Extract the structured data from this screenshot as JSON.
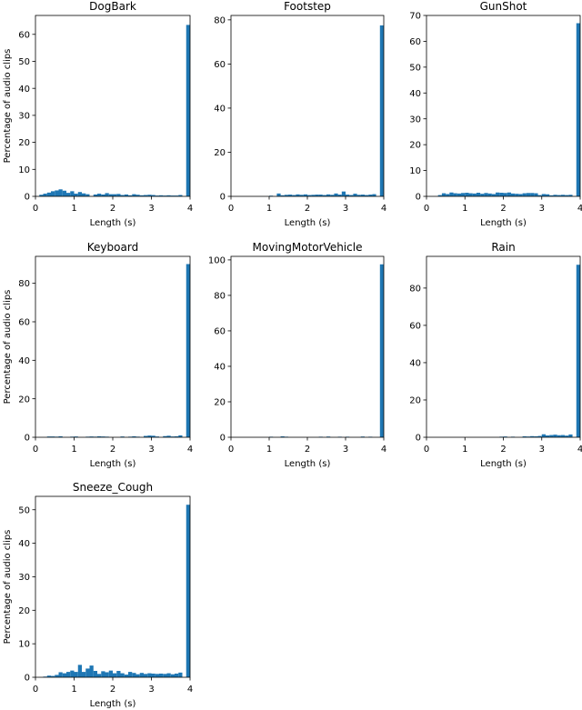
{
  "chart_data": [
    {
      "type": "bar",
      "title": "DogBark",
      "xlabel": "Length (s)",
      "ylabel": "Percentage of audio clips",
      "xlim": [
        0,
        4
      ],
      "ylim": [
        0,
        67
      ],
      "xticks": [
        0,
        1,
        2,
        3,
        4
      ],
      "yticks": [
        0,
        10,
        20,
        30,
        40,
        50,
        60
      ],
      "bin_width": 0.1,
      "color": "#1f77b4",
      "bins": [
        {
          "x": 0.1,
          "y": 0.6
        },
        {
          "x": 0.2,
          "y": 1.0
        },
        {
          "x": 0.3,
          "y": 1.4
        },
        {
          "x": 0.4,
          "y": 1.9
        },
        {
          "x": 0.5,
          "y": 2.2
        },
        {
          "x": 0.6,
          "y": 2.6
        },
        {
          "x": 0.7,
          "y": 2.1
        },
        {
          "x": 0.8,
          "y": 1.3
        },
        {
          "x": 0.9,
          "y": 1.9
        },
        {
          "x": 1.0,
          "y": 1.0
        },
        {
          "x": 1.1,
          "y": 1.6
        },
        {
          "x": 1.2,
          "y": 1.1
        },
        {
          "x": 1.3,
          "y": 0.8
        },
        {
          "x": 1.5,
          "y": 0.7
        },
        {
          "x": 1.6,
          "y": 1.0
        },
        {
          "x": 1.7,
          "y": 0.7
        },
        {
          "x": 1.8,
          "y": 1.2
        },
        {
          "x": 1.9,
          "y": 0.8
        },
        {
          "x": 2.0,
          "y": 0.8
        },
        {
          "x": 2.1,
          "y": 0.9
        },
        {
          "x": 2.2,
          "y": 0.5
        },
        {
          "x": 2.3,
          "y": 0.7
        },
        {
          "x": 2.4,
          "y": 0.4
        },
        {
          "x": 2.5,
          "y": 0.8
        },
        {
          "x": 2.6,
          "y": 0.6
        },
        {
          "x": 2.7,
          "y": 0.4
        },
        {
          "x": 2.8,
          "y": 0.5
        },
        {
          "x": 2.9,
          "y": 0.6
        },
        {
          "x": 3.0,
          "y": 0.5
        },
        {
          "x": 3.1,
          "y": 0.3
        },
        {
          "x": 3.2,
          "y": 0.4
        },
        {
          "x": 3.3,
          "y": 0.3
        },
        {
          "x": 3.4,
          "y": 0.4
        },
        {
          "x": 3.5,
          "y": 0.3
        },
        {
          "x": 3.6,
          "y": 0.3
        },
        {
          "x": 3.7,
          "y": 0.5
        },
        {
          "x": 3.9,
          "y": 63.5
        }
      ]
    },
    {
      "type": "bar",
      "title": "Footstep",
      "xlabel": "Length (s)",
      "ylabel": "",
      "xlim": [
        0,
        4
      ],
      "ylim": [
        0,
        82
      ],
      "xticks": [
        0,
        1,
        2,
        3,
        4
      ],
      "yticks": [
        0,
        20,
        40,
        60,
        80
      ],
      "bin_width": 0.1,
      "color": "#1f77b4",
      "bins": [
        {
          "x": 1.0,
          "y": 0.3
        },
        {
          "x": 1.2,
          "y": 1.3
        },
        {
          "x": 1.3,
          "y": 0.5
        },
        {
          "x": 1.4,
          "y": 0.7
        },
        {
          "x": 1.5,
          "y": 0.8
        },
        {
          "x": 1.6,
          "y": 0.6
        },
        {
          "x": 1.7,
          "y": 0.9
        },
        {
          "x": 1.8,
          "y": 0.7
        },
        {
          "x": 1.9,
          "y": 0.9
        },
        {
          "x": 2.0,
          "y": 0.6
        },
        {
          "x": 2.1,
          "y": 0.7
        },
        {
          "x": 2.2,
          "y": 0.8
        },
        {
          "x": 2.3,
          "y": 0.8
        },
        {
          "x": 2.4,
          "y": 0.6
        },
        {
          "x": 2.5,
          "y": 0.9
        },
        {
          "x": 2.6,
          "y": 0.7
        },
        {
          "x": 2.7,
          "y": 1.3
        },
        {
          "x": 2.8,
          "y": 0.8
        },
        {
          "x": 2.9,
          "y": 2.2
        },
        {
          "x": 3.0,
          "y": 0.8
        },
        {
          "x": 3.1,
          "y": 0.6
        },
        {
          "x": 3.2,
          "y": 1.2
        },
        {
          "x": 3.3,
          "y": 0.7
        },
        {
          "x": 3.4,
          "y": 0.8
        },
        {
          "x": 3.5,
          "y": 0.6
        },
        {
          "x": 3.6,
          "y": 0.8
        },
        {
          "x": 3.7,
          "y": 1.0
        },
        {
          "x": 3.9,
          "y": 77.5
        }
      ]
    },
    {
      "type": "bar",
      "title": "GunShot",
      "xlabel": "Length (s)",
      "ylabel": "",
      "xlim": [
        0,
        4
      ],
      "ylim": [
        0,
        70
      ],
      "xticks": [
        0,
        1,
        2,
        3,
        4
      ],
      "yticks": [
        0,
        10,
        20,
        30,
        40,
        50,
        60,
        70
      ],
      "bin_width": 0.1,
      "color": "#1f77b4",
      "bins": [
        {
          "x": 0.3,
          "y": 0.5
        },
        {
          "x": 0.4,
          "y": 1.2
        },
        {
          "x": 0.5,
          "y": 0.9
        },
        {
          "x": 0.6,
          "y": 1.5
        },
        {
          "x": 0.7,
          "y": 1.2
        },
        {
          "x": 0.8,
          "y": 1.1
        },
        {
          "x": 0.9,
          "y": 1.3
        },
        {
          "x": 1.0,
          "y": 1.4
        },
        {
          "x": 1.1,
          "y": 1.2
        },
        {
          "x": 1.2,
          "y": 1.1
        },
        {
          "x": 1.3,
          "y": 1.4
        },
        {
          "x": 1.4,
          "y": 1.0
        },
        {
          "x": 1.5,
          "y": 1.3
        },
        {
          "x": 1.6,
          "y": 1.1
        },
        {
          "x": 1.7,
          "y": 0.9
        },
        {
          "x": 1.8,
          "y": 1.5
        },
        {
          "x": 1.9,
          "y": 1.4
        },
        {
          "x": 2.0,
          "y": 1.3
        },
        {
          "x": 2.1,
          "y": 1.5
        },
        {
          "x": 2.2,
          "y": 1.1
        },
        {
          "x": 2.3,
          "y": 1.0
        },
        {
          "x": 2.4,
          "y": 0.9
        },
        {
          "x": 2.5,
          "y": 1.2
        },
        {
          "x": 2.6,
          "y": 1.3
        },
        {
          "x": 2.7,
          "y": 1.3
        },
        {
          "x": 2.8,
          "y": 1.2
        },
        {
          "x": 2.9,
          "y": 0.5
        },
        {
          "x": 3.0,
          "y": 0.9
        },
        {
          "x": 3.1,
          "y": 0.8
        },
        {
          "x": 3.2,
          "y": 0.4
        },
        {
          "x": 3.3,
          "y": 0.6
        },
        {
          "x": 3.4,
          "y": 0.5
        },
        {
          "x": 3.5,
          "y": 0.6
        },
        {
          "x": 3.6,
          "y": 0.5
        },
        {
          "x": 3.7,
          "y": 0.6
        },
        {
          "x": 3.9,
          "y": 67
        }
      ]
    },
    {
      "type": "bar",
      "title": "Keyboard",
      "xlabel": "Length (s)",
      "ylabel": "Percentage of audio clips",
      "xlim": [
        0,
        4
      ],
      "ylim": [
        0,
        94
      ],
      "xticks": [
        0,
        1,
        2,
        3,
        4
      ],
      "yticks": [
        0,
        20,
        40,
        60,
        80
      ],
      "bin_width": 0.1,
      "color": "#1f77b4",
      "bins": [
        {
          "x": 0.3,
          "y": 0.4
        },
        {
          "x": 0.4,
          "y": 0.4
        },
        {
          "x": 0.5,
          "y": 0.3
        },
        {
          "x": 0.6,
          "y": 0.5
        },
        {
          "x": 0.9,
          "y": 0.3
        },
        {
          "x": 1.0,
          "y": 0.4
        },
        {
          "x": 1.3,
          "y": 0.3
        },
        {
          "x": 1.4,
          "y": 0.4
        },
        {
          "x": 1.5,
          "y": 0.3
        },
        {
          "x": 1.6,
          "y": 0.5
        },
        {
          "x": 1.7,
          "y": 0.4
        },
        {
          "x": 1.8,
          "y": 0.3
        },
        {
          "x": 2.2,
          "y": 0.4
        },
        {
          "x": 2.4,
          "y": 0.3
        },
        {
          "x": 2.5,
          "y": 0.5
        },
        {
          "x": 2.6,
          "y": 0.3
        },
        {
          "x": 2.8,
          "y": 0.7
        },
        {
          "x": 2.9,
          "y": 0.9
        },
        {
          "x": 3.0,
          "y": 0.8
        },
        {
          "x": 3.1,
          "y": 0.4
        },
        {
          "x": 3.3,
          "y": 0.6
        },
        {
          "x": 3.4,
          "y": 0.8
        },
        {
          "x": 3.5,
          "y": 0.4
        },
        {
          "x": 3.6,
          "y": 0.5
        },
        {
          "x": 3.7,
          "y": 1.0
        },
        {
          "x": 3.9,
          "y": 90
        }
      ]
    },
    {
      "type": "bar",
      "title": "MovingMotorVehicle",
      "xlabel": "Length (s)",
      "ylabel": "",
      "xlim": [
        0,
        4
      ],
      "ylim": [
        0,
        102
      ],
      "xticks": [
        0,
        1,
        2,
        3,
        4
      ],
      "yticks": [
        0,
        20,
        40,
        60,
        80,
        100
      ],
      "bin_width": 0.1,
      "color": "#1f77b4",
      "bins": [
        {
          "x": 1.0,
          "y": 0.3
        },
        {
          "x": 1.3,
          "y": 0.5
        },
        {
          "x": 1.4,
          "y": 0.3
        },
        {
          "x": 2.3,
          "y": 0.3
        },
        {
          "x": 2.5,
          "y": 0.4
        },
        {
          "x": 2.8,
          "y": 0.3
        },
        {
          "x": 3.0,
          "y": 0.3
        },
        {
          "x": 3.4,
          "y": 0.4
        },
        {
          "x": 3.6,
          "y": 0.3
        },
        {
          "x": 3.9,
          "y": 97.5
        }
      ]
    },
    {
      "type": "bar",
      "title": "Rain",
      "xlabel": "Length (s)",
      "ylabel": "",
      "xlim": [
        0,
        4
      ],
      "ylim": [
        0,
        97
      ],
      "xticks": [
        0,
        1,
        2,
        3,
        4
      ],
      "yticks": [
        0,
        20,
        40,
        60,
        80
      ],
      "bin_width": 0.1,
      "color": "#1f77b4",
      "bins": [
        {
          "x": 1.9,
          "y": 0.3
        },
        {
          "x": 2.0,
          "y": 0.4
        },
        {
          "x": 2.2,
          "y": 0.3
        },
        {
          "x": 2.5,
          "y": 0.5
        },
        {
          "x": 2.6,
          "y": 0.4
        },
        {
          "x": 2.7,
          "y": 0.6
        },
        {
          "x": 2.8,
          "y": 0.5
        },
        {
          "x": 2.9,
          "y": 0.7
        },
        {
          "x": 3.0,
          "y": 1.6
        },
        {
          "x": 3.1,
          "y": 1.0
        },
        {
          "x": 3.2,
          "y": 1.2
        },
        {
          "x": 3.3,
          "y": 1.4
        },
        {
          "x": 3.4,
          "y": 1.1
        },
        {
          "x": 3.5,
          "y": 1.2
        },
        {
          "x": 3.6,
          "y": 0.9
        },
        {
          "x": 3.7,
          "y": 1.5
        },
        {
          "x": 3.9,
          "y": 92.5
        }
      ]
    },
    {
      "type": "bar",
      "title": "Sneeze_Cough",
      "xlabel": "Length (s)",
      "ylabel": "Percentage of audio clips",
      "xlim": [
        0,
        4
      ],
      "ylim": [
        0,
        54
      ],
      "xticks": [
        0,
        1,
        2,
        3,
        4
      ],
      "yticks": [
        0,
        10,
        20,
        30,
        40,
        50
      ],
      "bin_width": 0.1,
      "color": "#1f77b4",
      "bins": [
        {
          "x": 0.2,
          "y": 0.2
        },
        {
          "x": 0.3,
          "y": 0.5
        },
        {
          "x": 0.4,
          "y": 0.4
        },
        {
          "x": 0.5,
          "y": 0.7
        },
        {
          "x": 0.6,
          "y": 1.5
        },
        {
          "x": 0.7,
          "y": 1.2
        },
        {
          "x": 0.8,
          "y": 1.6
        },
        {
          "x": 0.9,
          "y": 2.0
        },
        {
          "x": 1.0,
          "y": 1.6
        },
        {
          "x": 1.1,
          "y": 3.7
        },
        {
          "x": 1.2,
          "y": 1.6
        },
        {
          "x": 1.3,
          "y": 2.6
        },
        {
          "x": 1.4,
          "y": 3.5
        },
        {
          "x": 1.5,
          "y": 1.9
        },
        {
          "x": 1.6,
          "y": 1.0
        },
        {
          "x": 1.7,
          "y": 1.8
        },
        {
          "x": 1.8,
          "y": 1.5
        },
        {
          "x": 1.9,
          "y": 2.0
        },
        {
          "x": 2.0,
          "y": 1.2
        },
        {
          "x": 2.1,
          "y": 1.9
        },
        {
          "x": 2.2,
          "y": 1.2
        },
        {
          "x": 2.3,
          "y": 0.8
        },
        {
          "x": 2.4,
          "y": 1.6
        },
        {
          "x": 2.5,
          "y": 1.3
        },
        {
          "x": 2.6,
          "y": 0.9
        },
        {
          "x": 2.7,
          "y": 1.3
        },
        {
          "x": 2.8,
          "y": 1.0
        },
        {
          "x": 2.9,
          "y": 1.2
        },
        {
          "x": 3.0,
          "y": 1.1
        },
        {
          "x": 3.1,
          "y": 1.0
        },
        {
          "x": 3.2,
          "y": 1.1
        },
        {
          "x": 3.3,
          "y": 1.0
        },
        {
          "x": 3.4,
          "y": 1.2
        },
        {
          "x": 3.5,
          "y": 0.9
        },
        {
          "x": 3.6,
          "y": 1.1
        },
        {
          "x": 3.7,
          "y": 1.4
        },
        {
          "x": 3.9,
          "y": 51.5
        }
      ]
    }
  ]
}
